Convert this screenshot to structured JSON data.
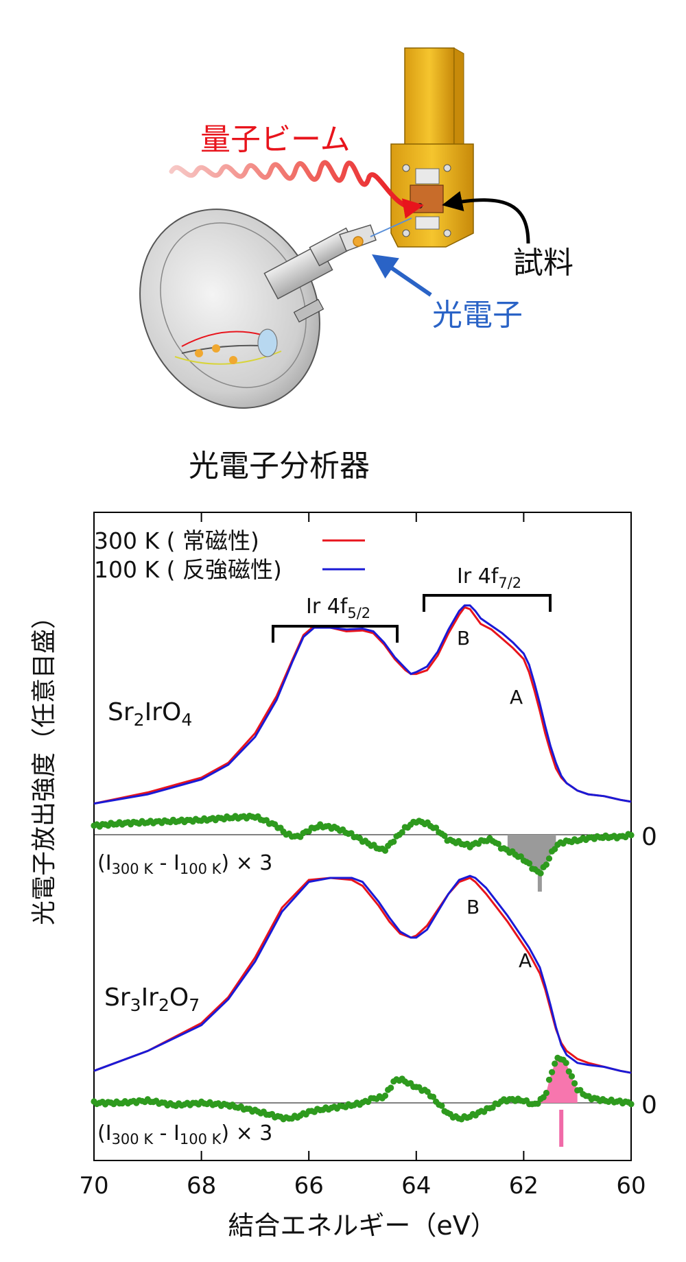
{
  "diagram": {
    "beam_label": "量子ビーム",
    "sample_label": "試料",
    "photoelectron_label": "光電子",
    "analyzer_label": "光電子分析器"
  },
  "legend": {
    "entries": [
      {
        "text": "300 K ( 常磁性)",
        "color": "#e8141c"
      },
      {
        "text": "100 K ( 反強磁性)",
        "color": "#1a1ad6"
      }
    ]
  },
  "peaks": {
    "f52_main": "Ir 4f",
    "f52_sub": "5/2",
    "f72_main": "Ir 4f",
    "f72_sub": "7/2",
    "A": "A",
    "B": "B"
  },
  "samples": {
    "top": {
      "name_parts": [
        [
          "Sr",
          false
        ],
        [
          "2",
          true
        ],
        [
          "IrO",
          false
        ],
        [
          "4",
          true
        ]
      ]
    },
    "bottom": {
      "name_parts": [
        [
          "Sr",
          false
        ],
        [
          "3",
          true
        ],
        [
          "Ir",
          false
        ],
        [
          "2",
          true
        ],
        [
          "O",
          false
        ],
        [
          "7",
          true
        ]
      ]
    }
  },
  "diff_label": {
    "open": "(I",
    "sub1": "300 K",
    "mid": " - I",
    "sub2": "100 K",
    "close": ") × 3"
  },
  "zero_label": "0",
  "colors": {
    "red": "#e8141c",
    "blue": "#1a1ad6",
    "green": "#2e9a1e",
    "gray_fill": "#9a9a9a",
    "pink_fill": "#f776ae",
    "pink_tick": "#f06aa8"
  },
  "chart_data": {
    "type": "line",
    "xlabel": "結合エネルギー（eV）",
    "ylabel": "光電子放出強度（任意目盛）",
    "xlim": [
      70,
      60
    ],
    "x_reversed": true,
    "x_ticks": [
      70,
      68,
      66,
      64,
      62,
      60
    ],
    "legend_position": "top-left",
    "panels": [
      {
        "sample": "Sr2IrO4",
        "series": [
          {
            "name": "300 K ( 常磁性)",
            "x": [
              70,
              69,
              68,
              67.5,
              67,
              66.6,
              66.3,
              66.1,
              65.9,
              65.6,
              65.3,
              65,
              64.8,
              64.6,
              64.4,
              64.2,
              64.1,
              64,
              63.8,
              63.6,
              63.4,
              63.2,
              63.1,
              63,
              62.9,
              62.8,
              62.6,
              62.4,
              62.2,
              62,
              61.9,
              61.8,
              61.7,
              61.6,
              61.5,
              61.4,
              61.3,
              61.2,
              61.1,
              61,
              60.8,
              60.5,
              60.2,
              60
            ],
            "y": [
              0.02,
              0.08,
              0.16,
              0.24,
              0.4,
              0.6,
              0.8,
              0.93,
              0.98,
              0.97,
              0.95,
              0.955,
              0.94,
              0.88,
              0.8,
              0.74,
              0.72,
              0.72,
              0.74,
              0.82,
              0.94,
              1.04,
              1.08,
              1.07,
              1.03,
              0.99,
              0.96,
              0.91,
              0.86,
              0.8,
              0.73,
              0.63,
              0.52,
              0.4,
              0.3,
              0.21,
              0.16,
              0.13,
              0.11,
              0.09,
              0.07,
              0.06,
              0.04,
              0.03
            ]
          },
          {
            "name": "100 K ( 反強磁性)",
            "x": [
              70,
              69,
              68,
              67.5,
              67,
              66.6,
              66.3,
              66.1,
              65.9,
              65.6,
              65.3,
              65,
              64.8,
              64.6,
              64.4,
              64.2,
              64.1,
              64,
              63.8,
              63.6,
              63.4,
              63.2,
              63.1,
              63,
              62.9,
              62.8,
              62.6,
              62.4,
              62.2,
              62,
              61.9,
              61.8,
              61.7,
              61.6,
              61.5,
              61.4,
              61.3,
              61.2,
              61.1,
              61,
              60.8,
              60.5,
              60.2,
              60
            ],
            "y": [
              0.02,
              0.07,
              0.15,
              0.23,
              0.38,
              0.58,
              0.79,
              0.92,
              0.97,
              0.97,
              0.96,
              0.965,
              0.95,
              0.89,
              0.81,
              0.75,
              0.72,
              0.73,
              0.76,
              0.84,
              0.96,
              1.06,
              1.09,
              1.09,
              1.06,
              1.02,
              0.98,
              0.94,
              0.89,
              0.83,
              0.77,
              0.67,
              0.56,
              0.44,
              0.33,
              0.24,
              0.17,
              0.13,
              0.11,
              0.09,
              0.07,
              0.06,
              0.04,
              0.03
            ]
          }
        ],
        "difference": {
          "name": "(I300 K - I100 K) × 3",
          "x": [
            70,
            69.5,
            69,
            68.5,
            68,
            67.5,
            67,
            66.6,
            66.4,
            66.2,
            66,
            65.8,
            65.5,
            65.2,
            65,
            64.8,
            64.6,
            64.4,
            64.2,
            64,
            63.8,
            63.6,
            63.4,
            63.2,
            63,
            62.8,
            62.6,
            62.4,
            62.2,
            62,
            61.9,
            61.8,
            61.7,
            61.6,
            61.5,
            61.4,
            61.3,
            61.2,
            61,
            60.8,
            60.5,
            60.2,
            60
          ],
          "y": [
            0.08,
            0.1,
            0.11,
            0.12,
            0.13,
            0.15,
            0.16,
            0.08,
            0.0,
            -0.02,
            0.04,
            0.08,
            0.06,
            0.0,
            -0.05,
            -0.1,
            -0.14,
            -0.04,
            0.06,
            0.12,
            0.1,
            0.04,
            -0.05,
            -0.07,
            -0.1,
            -0.06,
            -0.04,
            -0.12,
            -0.16,
            -0.22,
            -0.26,
            -0.31,
            -0.34,
            -0.28,
            -0.18,
            -0.1,
            -0.07,
            -0.06,
            -0.05,
            -0.03,
            -0.02,
            -0.02,
            0.0
          ]
        },
        "marker_x": 61.7
      },
      {
        "sample": "Sr3Ir2O7",
        "series": [
          {
            "name": "300 K ( 常磁性)",
            "x": [
              70,
              69,
              68,
              67.5,
              67,
              66.5,
              66,
              65.6,
              65.2,
              65,
              64.7,
              64.5,
              64.3,
              64.1,
              64,
              63.8,
              63.6,
              63.4,
              63.2,
              63,
              62.9,
              62.7,
              62.5,
              62.3,
              62.1,
              61.9,
              61.7,
              61.6,
              61.5,
              61.4,
              61.3,
              61.2,
              61.1,
              61,
              60.8,
              60.5,
              60.2,
              60
            ],
            "y": [
              0.03,
              0.13,
              0.27,
              0.4,
              0.6,
              0.85,
              0.99,
              1.0,
              0.99,
              0.96,
              0.86,
              0.78,
              0.72,
              0.7,
              0.71,
              0.76,
              0.84,
              0.92,
              0.98,
              1.0,
              0.98,
              0.92,
              0.85,
              0.78,
              0.7,
              0.62,
              0.52,
              0.44,
              0.34,
              0.24,
              0.17,
              0.13,
              0.11,
              0.09,
              0.07,
              0.05,
              0.03,
              0.02
            ]
          },
          {
            "name": "100 K ( 反強磁性)",
            "x": [
              70,
              69,
              68,
              67.5,
              67,
              66.5,
              66,
              65.6,
              65.2,
              65,
              64.7,
              64.5,
              64.3,
              64.1,
              64,
              63.8,
              63.6,
              63.4,
              63.2,
              63,
              62.9,
              62.7,
              62.5,
              62.3,
              62.1,
              61.9,
              61.7,
              61.6,
              61.5,
              61.4,
              61.3,
              61.2,
              61.1,
              61,
              60.8,
              60.5,
              60.2,
              60
            ],
            "y": [
              0.03,
              0.13,
              0.26,
              0.39,
              0.58,
              0.83,
              0.98,
              1.0,
              1.0,
              0.98,
              0.88,
              0.8,
              0.73,
              0.7,
              0.7,
              0.74,
              0.83,
              0.92,
              0.99,
              1.01,
              1.0,
              0.95,
              0.88,
              0.81,
              0.73,
              0.65,
              0.55,
              0.46,
              0.36,
              0.25,
              0.16,
              0.11,
              0.09,
              0.07,
              0.06,
              0.05,
              0.03,
              0.02
            ]
          }
        ],
        "difference": {
          "name": "(I300 K - I100 K) × 3",
          "x": [
            70,
            69.5,
            69,
            68.5,
            68,
            67.5,
            67,
            66.6,
            66.4,
            66.2,
            66,
            65.8,
            65.5,
            65.2,
            65,
            64.8,
            64.6,
            64.4,
            64.3,
            64.2,
            64.1,
            64,
            63.8,
            63.6,
            63.4,
            63.2,
            63,
            62.8,
            62.6,
            62.4,
            62.2,
            62,
            61.8,
            61.6,
            61.5,
            61.4,
            61.3,
            61.2,
            61.1,
            61,
            60.8,
            60.5,
            60.2,
            60
          ],
          "y": [
            0.0,
            0.0,
            0.02,
            -0.02,
            0.0,
            -0.02,
            -0.07,
            -0.12,
            -0.14,
            -0.12,
            -0.08,
            -0.06,
            -0.04,
            -0.02,
            0.0,
            0.04,
            0.05,
            0.2,
            0.21,
            0.19,
            0.16,
            0.14,
            0.1,
            0.0,
            -0.1,
            -0.14,
            -0.12,
            -0.08,
            -0.04,
            0.02,
            0.03,
            0.02,
            -0.02,
            0.06,
            0.24,
            0.38,
            0.4,
            0.34,
            0.22,
            0.12,
            0.05,
            0.02,
            0.01,
            0.0
          ]
        },
        "fill_range": [
          61.8,
          61.0
        ],
        "marker_x": 61.3
      }
    ]
  }
}
